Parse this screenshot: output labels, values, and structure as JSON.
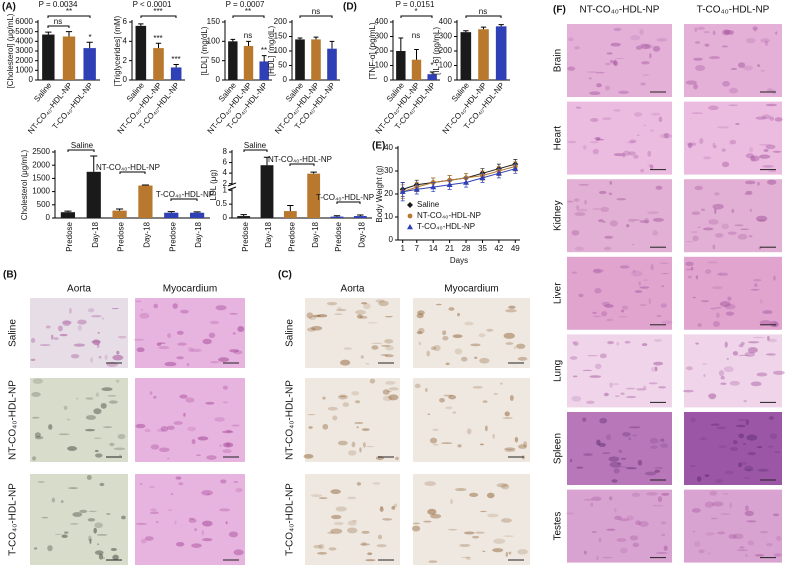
{
  "panel_labels": {
    "A": "(A)",
    "D": "(D)",
    "E": "(E)"
  },
  "chart_data": [
    {
      "type": "bar",
      "ylabel": "[Cholesterol] (μg/mL)",
      "categories": [
        "Saline",
        "NT-CO₄₀-HDL-NP",
        "T-CO₄₀-HDL-NP"
      ],
      "values": [
        4700,
        4500,
        3300
      ],
      "errors": [
        250,
        500,
        600
      ],
      "colors": [
        "#1a1a1a",
        "#b8792f",
        "#2f3fb5"
      ],
      "ylim": [
        0,
        6000
      ],
      "yticks": [
        0,
        1000,
        2000,
        3000,
        4000,
        5000,
        6000
      ],
      "annotations": [
        "P = 0.0034",
        "ns",
        "**",
        "*"
      ]
    },
    {
      "type": "bar",
      "ylabel": "[Triglycerides] (mM)",
      "categories": [
        "Saline",
        "NT-CO₄₀-HDL-NP",
        "T-CO₄₀-HDL-NP"
      ],
      "values": [
        5.6,
        3.3,
        1.3
      ],
      "errors": [
        0.2,
        0.5,
        0.3
      ],
      "colors": [
        "#1a1a1a",
        "#b8792f",
        "#2f3fb5"
      ],
      "ylim": [
        0,
        6
      ],
      "yticks": [
        0,
        2,
        4,
        6
      ],
      "annotations": [
        "P < 0.0001",
        "***",
        "***",
        "***"
      ]
    },
    {
      "type": "bar",
      "ylabel": "[LDL] (mg/dL)",
      "categories": [
        "Saline",
        "NT-CO₄₀-HDL-NP",
        "T-CO₄₀-HDL-NP"
      ],
      "values": [
        100,
        88,
        48
      ],
      "errors": [
        5,
        12,
        15
      ],
      "colors": [
        "#1a1a1a",
        "#b8792f",
        "#2f3fb5"
      ],
      "ylim": [
        0,
        150
      ],
      "yticks": [
        0,
        50,
        100,
        150
      ],
      "annotations": [
        "P = 0.0007",
        "**",
        "ns",
        "**"
      ]
    },
    {
      "type": "bar",
      "ylabel": "[HDL] (mg/dL)",
      "categories": [
        "Saline",
        "NT-CO₄₀-HDL-NP",
        "T-CO₄₀-HDL-NP"
      ],
      "values": [
        140,
        140,
        108
      ],
      "errors": [
        5,
        8,
        25
      ],
      "colors": [
        "#1a1a1a",
        "#b8792f",
        "#2f3fb5"
      ],
      "ylim": [
        0,
        200
      ],
      "yticks": [
        0,
        50,
        100,
        150,
        200
      ],
      "annotations": [
        "ns"
      ]
    },
    {
      "type": "bar",
      "ylabel": "Cholesterol (μg/mL)",
      "categories": [
        "Predose",
        "Day-18",
        "Predose",
        "Day-18",
        "Predose",
        "Day-18"
      ],
      "values": [
        220,
        1750,
        280,
        1230,
        200,
        200
      ],
      "errors": [
        40,
        600,
        60,
        20,
        40,
        30
      ],
      "colors": [
        "#1a1a1a",
        "#1a1a1a",
        "#b8792f",
        "#b8792f",
        "#2f3fb5",
        "#2f3fb5"
      ],
      "ylim": [
        0,
        2500
      ],
      "yticks": [
        0,
        500,
        1000,
        1500,
        2000,
        2500
      ],
      "annotations": [
        "Saline",
        "NT-CO₄₀-HDL-NP",
        "T-CO₄₀-HDL-NP"
      ]
    },
    {
      "type": "bar",
      "ylabel": "LDL (μg)",
      "categories": [
        "Predose",
        "Day-18",
        "Predose",
        "Day-18",
        "Predose",
        "Day-18"
      ],
      "values": [
        0.07,
        5.5,
        0.25,
        3.9,
        0.05,
        0.07
      ],
      "errors": [
        0.05,
        1.5,
        0.2,
        0.3,
        0.03,
        0.04
      ],
      "colors": [
        "#1a1a1a",
        "#1a1a1a",
        "#b8792f",
        "#b8792f",
        "#2f3fb5",
        "#2f3fb5"
      ],
      "ylim": [
        0,
        8
      ],
      "axis_break": [
        1,
        2
      ],
      "yticks": [
        0,
        0.5,
        1,
        2,
        4,
        6,
        8
      ],
      "annotations": [
        "Saline",
        "NT-CO₄₀-HDL-NP",
        "T-CO₄₀-HDL-NP"
      ]
    },
    {
      "type": "bar",
      "ylabel": "[TNF-α] (pg/mL)",
      "categories": [
        "Saline",
        "NT-CO₄₀-HDL-NP",
        "T-CO₄₀-HDL-NP"
      ],
      "values": [
        200,
        140,
        40
      ],
      "errors": [
        90,
        70,
        15
      ],
      "colors": [
        "#1a1a1a",
        "#b8792f",
        "#2f3fb5"
      ],
      "ylim": [
        0,
        400
      ],
      "yticks": [
        0,
        100,
        200,
        300,
        400
      ],
      "annotations": [
        "P = 0.0151",
        "*",
        "ns",
        "*"
      ]
    },
    {
      "type": "bar",
      "ylabel": "[IL-6] (pg/mL)",
      "categories": [
        "Saline",
        "NT-CO₄₀-HDL-NP",
        "T-CO₄₀-HDL-NP"
      ],
      "values": [
        330,
        350,
        370
      ],
      "errors": [
        10,
        15,
        12
      ],
      "colors": [
        "#1a1a1a",
        "#b8792f",
        "#2f3fb5"
      ],
      "ylim": [
        0,
        400
      ],
      "yticks": [
        0,
        100,
        200,
        300,
        400
      ],
      "annotations": [
        "ns"
      ]
    },
    {
      "type": "line",
      "ylabel": "Body Weight (g)",
      "xlabel": "Days",
      "x": [
        1,
        7,
        14,
        21,
        28,
        35,
        42,
        49
      ],
      "xlim": [
        -1,
        51
      ],
      "xticks": [
        1,
        7,
        14,
        21,
        28,
        35,
        42,
        49
      ],
      "ylim": [
        0,
        40
      ],
      "yticks": [
        0,
        10,
        20,
        30,
        40
      ],
      "legend": "lower right",
      "series": [
        {
          "name": "Saline",
          "color": "#1a1a1a",
          "marker": "diamond",
          "values": [
            22,
            24,
            25,
            26,
            27,
            29,
            31,
            33
          ],
          "errors": [
            3,
            2,
            2,
            2,
            2,
            2,
            2,
            2
          ]
        },
        {
          "name": "NT-CO₄₀-HDL-NP",
          "color": "#b8792f",
          "marker": "circle",
          "values": [
            21,
            23,
            25,
            26,
            27,
            28,
            30,
            32
          ],
          "errors": [
            3,
            2,
            2,
            2,
            2,
            2,
            2,
            2
          ]
        },
        {
          "name": "T-CO₄₀-HDL-NP",
          "color": "#2f3fb5",
          "marker": "triangle",
          "values": [
            21,
            22,
            23,
            24,
            25,
            27,
            29,
            31
          ],
          "errors": [
            4,
            2,
            2,
            2,
            2,
            2,
            2,
            2
          ]
        }
      ]
    }
  ],
  "histology": [
    {
      "label": "(B)",
      "columns": [
        "Aorta",
        "Myocardium"
      ],
      "rows": [
        "Saline",
        "NT-CO₄₀-HDL-NP",
        "T-CO₄₀-HDL-NP"
      ]
    },
    {
      "label": "(C)",
      "columns": [
        "Aorta",
        "Myocardium"
      ],
      "rows": [
        "Saline",
        "NT-CO₄₀-HDL-NP",
        "T-CO₄₀-HDL-NP"
      ]
    },
    {
      "label": "(F)",
      "columns": [
        "NT-CO₄₀-HDL-NP",
        "T-CO₄₀-HDL-NP"
      ],
      "rows": [
        "Brain",
        "Heart",
        "Kidney",
        "Liver",
        "Lung",
        "Spleen",
        "Testes"
      ]
    }
  ]
}
